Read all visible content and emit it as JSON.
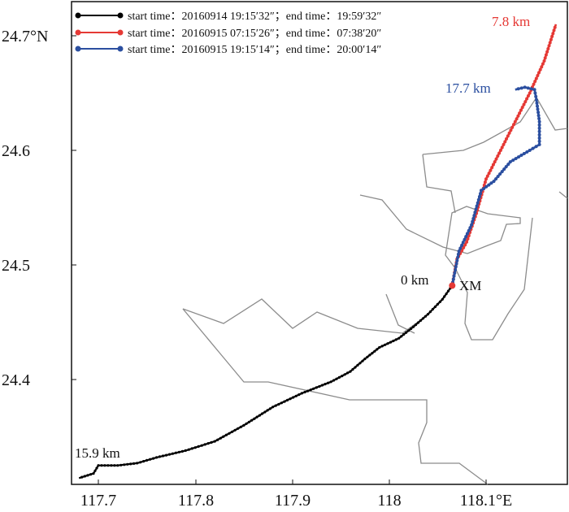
{
  "chart_data": {
    "type": "map",
    "x_ticks": [
      "117.7",
      "117.8",
      "117.9",
      "118",
      "118.1°E"
    ],
    "y_ticks": [
      "24.4",
      "24.5",
      "24.6",
      "24.7°N"
    ],
    "legend": [
      {
        "text": "start time：20160914 19:15′32″；end time：19:59′32″",
        "color": "#000000"
      },
      {
        "text": "start time：20160915 07:15′26″；end time：07:38′20″",
        "color": "#e53935"
      },
      {
        "text": "start time：20160915 19:15′14″；end time：20:00′14″",
        "color": "#2b4fa0"
      }
    ],
    "annotations": {
      "origin_distance": "0 km",
      "origin_name": "XM",
      "black_end": "15.9 km",
      "red_end": "7.8 km",
      "blue_end": "17.7 km"
    },
    "colors": {
      "black": "#000000",
      "red": "#e53935",
      "blue": "#2b4fa0",
      "coast": "#8c8c8c"
    },
    "tracks": {
      "black": [
        [
          118.065,
          24.482
        ],
        [
          118.055,
          24.47
        ],
        [
          118.04,
          24.457
        ],
        [
          118.025,
          24.446
        ],
        [
          118.01,
          24.436
        ],
        [
          117.99,
          24.428
        ],
        [
          117.975,
          24.418
        ],
        [
          117.96,
          24.407
        ],
        [
          117.94,
          24.398
        ],
        [
          117.91,
          24.388
        ],
        [
          117.88,
          24.376
        ],
        [
          117.85,
          24.36
        ],
        [
          117.82,
          24.346
        ],
        [
          117.79,
          24.338
        ],
        [
          117.76,
          24.332
        ],
        [
          117.74,
          24.327
        ],
        [
          117.72,
          24.325
        ],
        [
          117.7,
          24.325
        ],
        [
          117.695,
          24.318
        ],
        [
          117.68,
          24.314
        ]
      ],
      "red": [
        [
          118.065,
          24.482
        ],
        [
          118.07,
          24.505
        ],
        [
          118.08,
          24.52
        ],
        [
          118.09,
          24.545
        ],
        [
          118.1,
          24.575
        ],
        [
          118.115,
          24.6
        ],
        [
          118.13,
          24.625
        ],
        [
          118.145,
          24.65
        ],
        [
          118.16,
          24.678
        ],
        [
          118.172,
          24.71
        ]
      ],
      "blue": [
        [
          118.065,
          24.482
        ],
        [
          118.072,
          24.512
        ],
        [
          118.085,
          24.535
        ],
        [
          118.095,
          24.565
        ],
        [
          118.108,
          24.573
        ],
        [
          118.125,
          24.59
        ],
        [
          118.145,
          24.6
        ],
        [
          118.155,
          24.605
        ],
        [
          118.155,
          24.625
        ],
        [
          118.152,
          24.644
        ],
        [
          118.15,
          24.653
        ],
        [
          118.14,
          24.655
        ],
        [
          118.13,
          24.653
        ]
      ]
    }
  }
}
